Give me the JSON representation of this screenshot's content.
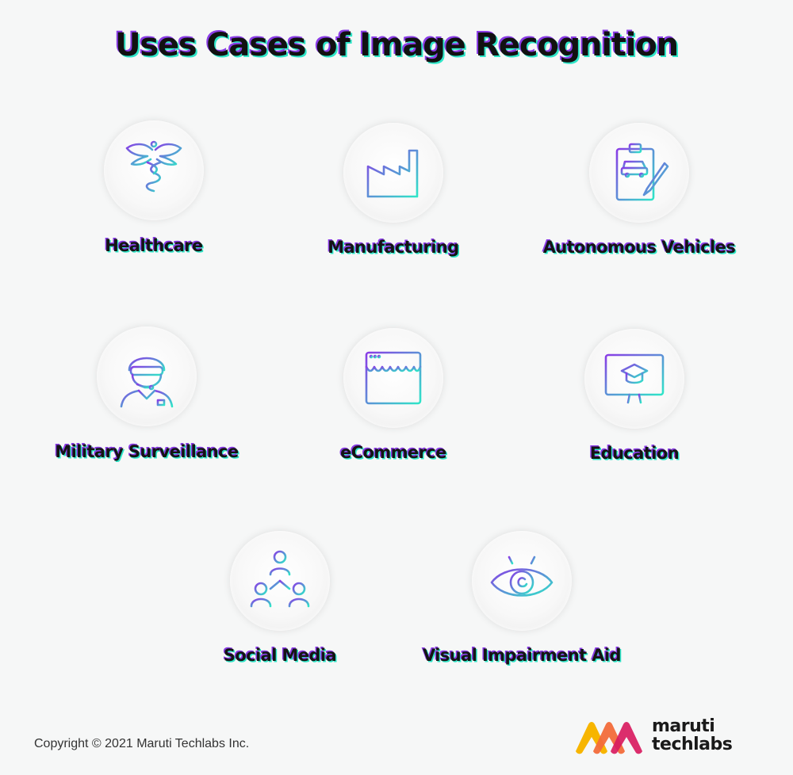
{
  "title": "Uses Cases of Image Recognition",
  "items": [
    {
      "label": "Healthcare",
      "icon": "caduceus-icon"
    },
    {
      "label": "Manufacturing",
      "icon": "factory-icon"
    },
    {
      "label": "Autonomous Vehicles",
      "icon": "clipboard-car-icon"
    },
    {
      "label": "Military Surveillance",
      "icon": "soldier-icon"
    },
    {
      "label": "eCommerce",
      "icon": "storefront-icon"
    },
    {
      "label": "Education",
      "icon": "graduation-monitor-icon"
    },
    {
      "label": "Social Media",
      "icon": "network-people-icon"
    },
    {
      "label": "Visual Impairment Aid",
      "icon": "eye-icon"
    }
  ],
  "footer": {
    "copyright": "Copyright © 2021 Maruti Techlabs Inc.",
    "brand_line1": "maruti",
    "brand_line2": "techlabs"
  },
  "colors": {
    "gradient_start": "#8a3ce6",
    "gradient_end": "#2ee6c8",
    "logo_yellow": "#f7b500",
    "logo_orange": "#f26b3a",
    "logo_red": "#d81b60",
    "logo_crimson": "#a31545"
  }
}
